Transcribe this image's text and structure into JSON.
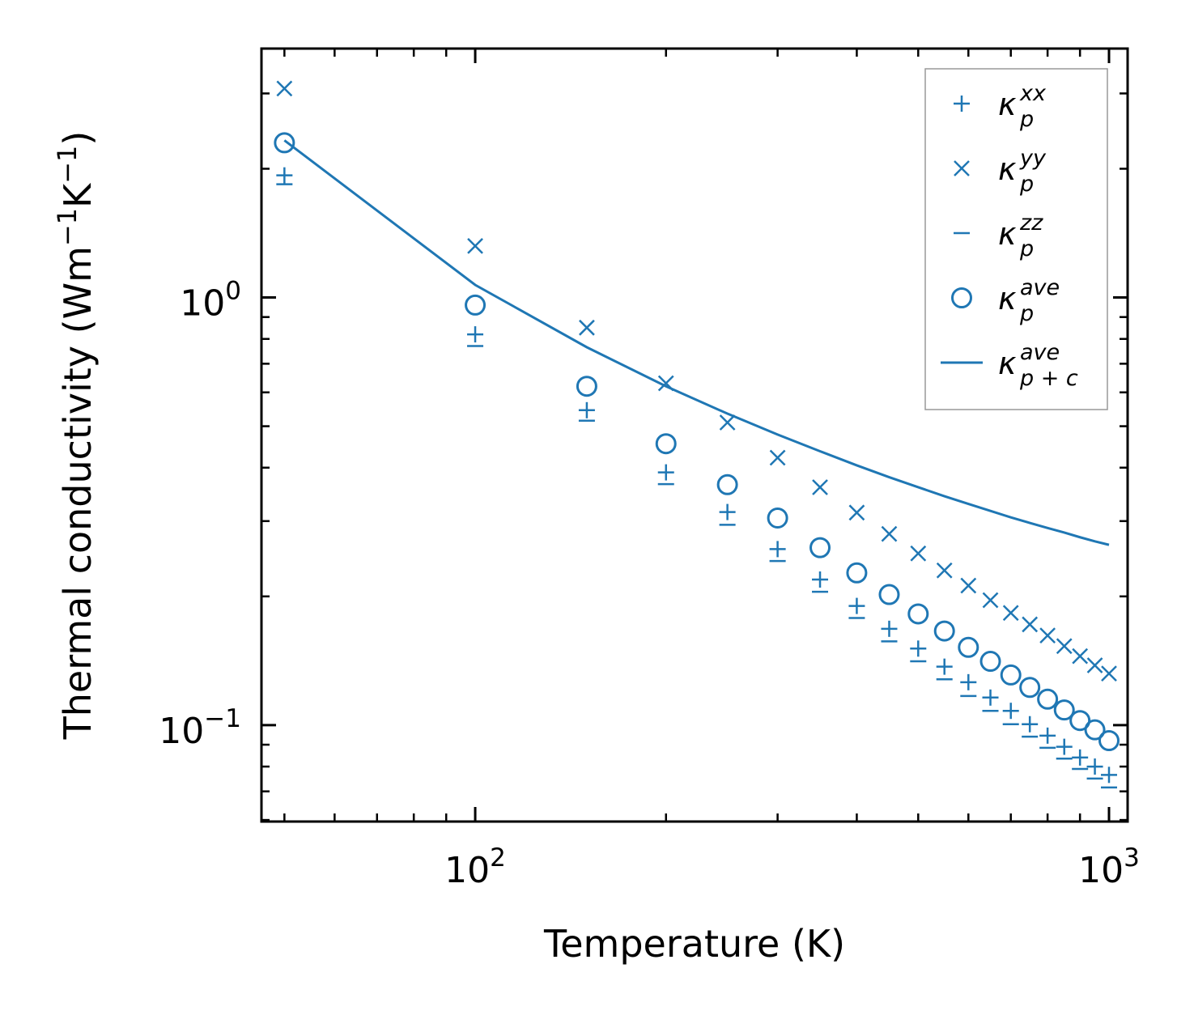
{
  "chart_data": {
    "type": "scatter",
    "xscale": "log",
    "yscale": "log",
    "xlabel": "Temperature (K)",
    "ylabel": "Thermal conductivity (Wm",
    "ylabel_parts": [
      "Thermal conductivity (Wm",
      "−1",
      "K",
      "−1",
      ")"
    ],
    "xlim": [
      46,
      1070
    ],
    "ylim": [
      0.0595,
      3.82
    ],
    "xticks": [
      {
        "value": 100,
        "base": "10",
        "exp": "2"
      },
      {
        "value": 1000,
        "base": "10",
        "exp": "3"
      }
    ],
    "yticks": [
      {
        "value": 1.0,
        "base": "10",
        "exp": "0"
      },
      {
        "value": 0.1,
        "base": "10",
        "exp": "−1"
      }
    ],
    "x": [
      50,
      100,
      150,
      200,
      250,
      300,
      350,
      400,
      450,
      500,
      550,
      600,
      650,
      700,
      750,
      800,
      850,
      900,
      950,
      1000
    ],
    "series": [
      {
        "name": "kappa_p_xx",
        "label_base": "κ",
        "label_sub": "p",
        "label_sup": "xx",
        "marker": "plus",
        "values": [
          1.93,
          0.82,
          0.545,
          0.39,
          0.315,
          0.258,
          0.219,
          0.19,
          0.168,
          0.151,
          0.137,
          0.126,
          0.116,
          0.108,
          0.1005,
          0.0945,
          0.089,
          0.084,
          0.08,
          0.0765
        ]
      },
      {
        "name": "kappa_p_yy",
        "label_base": "κ",
        "label_sub": "p",
        "label_sup": "yy",
        "marker": "x",
        "values": [
          3.08,
          1.32,
          0.85,
          0.63,
          0.51,
          0.422,
          0.36,
          0.314,
          0.28,
          0.252,
          0.23,
          0.212,
          0.196,
          0.183,
          0.172,
          0.162,
          0.153,
          0.145,
          0.138,
          0.132
        ]
      },
      {
        "name": "kappa_p_zz",
        "label_base": "κ",
        "label_sub": "p",
        "label_sup": "zz",
        "marker": "hline",
        "values": [
          1.84,
          0.77,
          0.515,
          0.366,
          0.294,
          0.242,
          0.205,
          0.178,
          0.157,
          0.141,
          0.128,
          0.117,
          0.108,
          0.1005,
          0.094,
          0.0885,
          0.0835,
          0.079,
          0.075,
          0.0715
        ]
      },
      {
        "name": "kappa_p_ave",
        "label_base": "κ",
        "label_sub": "p",
        "label_sup": "ave",
        "marker": "circle",
        "values": [
          2.3,
          0.96,
          0.62,
          0.455,
          0.365,
          0.305,
          0.26,
          0.227,
          0.202,
          0.182,
          0.166,
          0.152,
          0.141,
          0.131,
          0.1225,
          0.115,
          0.1085,
          0.1025,
          0.0975,
          0.092
        ]
      },
      {
        "name": "kappa_pc_ave",
        "label_base": "κ",
        "label_sub": "p + c",
        "label_sup": "ave",
        "marker": "line",
        "values": [
          2.33,
          1.07,
          0.765,
          0.62,
          0.535,
          0.478,
          0.437,
          0.405,
          0.38,
          0.36,
          0.343,
          0.329,
          0.317,
          0.306,
          0.297,
          0.289,
          0.282,
          0.275,
          0.269,
          0.264
        ]
      }
    ],
    "color": "#1f77b4",
    "legend_position": "top-right",
    "grid": false
  }
}
